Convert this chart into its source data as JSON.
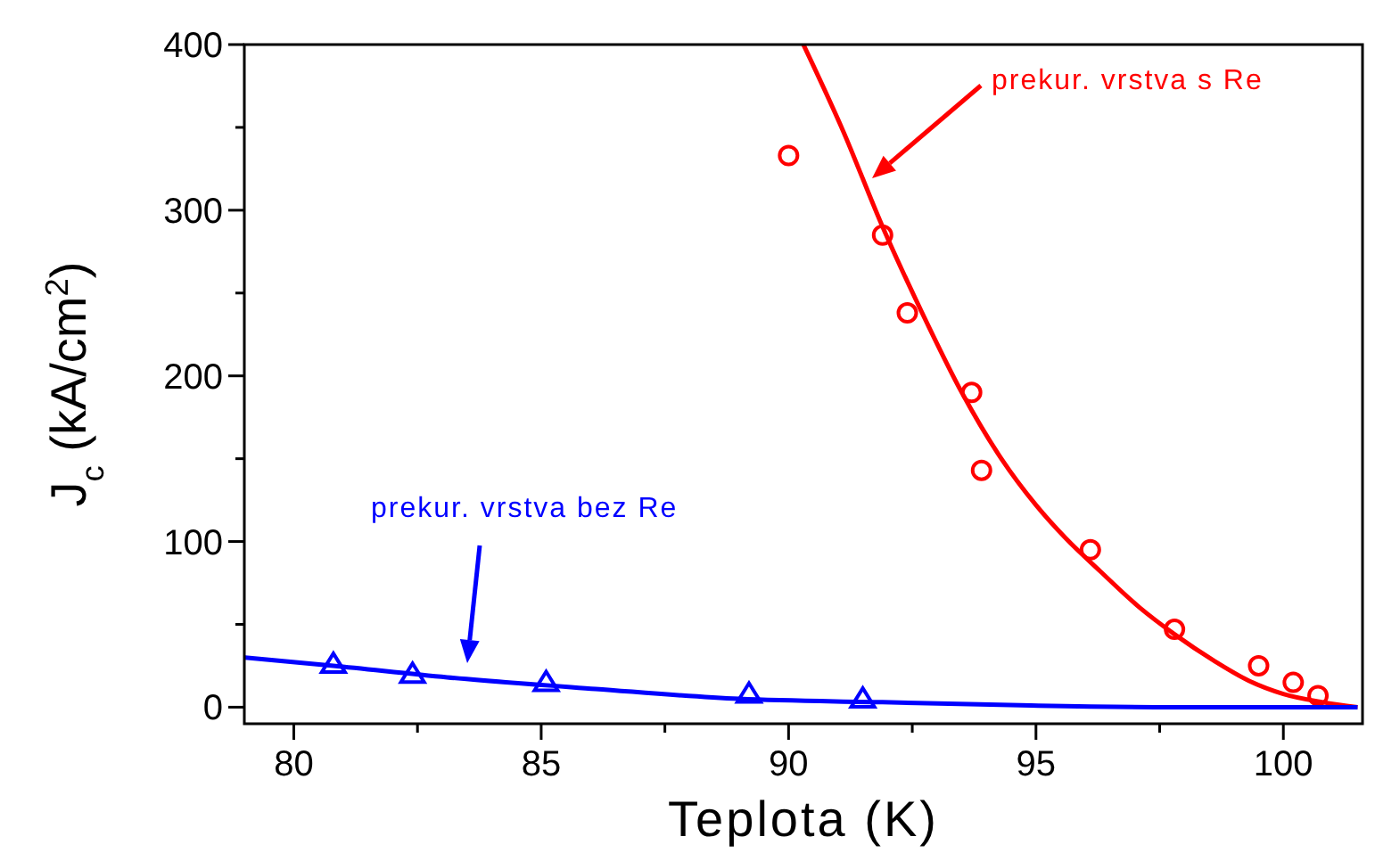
{
  "chart_data": {
    "type": "scatter",
    "xlabel": "Teplota (K)",
    "ylabel": "J$_{c}$ (kA/cm$^{2}$)",
    "xlim": [
      79,
      101.6
    ],
    "ylim": [
      -10,
      400
    ],
    "xticks": [
      80,
      {
        "value": 82.5,
        "label": null
      },
      85,
      {
        "value": 87.5,
        "label": null
      },
      90,
      {
        "value": 92.5,
        "label": null
      },
      95,
      {
        "value": 97.5,
        "label": null
      },
      100
    ],
    "yticks": [
      0,
      {
        "value": 50,
        "label": null
      },
      100,
      {
        "value": 150,
        "label": null
      },
      200,
      {
        "value": 250,
        "label": null
      },
      300,
      {
        "value": 350,
        "label": null
      },
      400
    ],
    "grid": false,
    "series": [
      {
        "type": "line",
        "color": "#ff0000",
        "marker": "none",
        "line_style": "solid",
        "x": [
          90.3,
          91.1,
          91.9,
          92.7,
          93.5,
          94.3,
          95.0,
          95.6,
          96.3,
          97.1,
          97.8,
          98.6,
          99.3,
          100.0,
          100.8,
          101.5
        ],
        "values": [
          400,
          348,
          290,
          238,
          190,
          150,
          122,
          102,
          82,
          60,
          44,
          28,
          16,
          8,
          3,
          0
        ]
      },
      {
        "color": "#ff0000",
        "marker": "circle",
        "x": [
          90.0,
          91.9,
          92.4,
          93.7,
          93.9,
          96.1,
          97.8,
          99.5,
          100.2,
          100.7
        ],
        "values": [
          333,
          285,
          238,
          190,
          143,
          95,
          47,
          25,
          15,
          7
        ]
      },
      {
        "type": "line",
        "color": "#0000ff",
        "marker": "none",
        "line_style": "solid",
        "x": [
          79.0,
          80.8,
          83.1,
          86.1,
          89.0,
          91.9,
          94.9,
          97.8,
          101.5
        ],
        "values": [
          30,
          25,
          18,
          11,
          5,
          3,
          1,
          0,
          0
        ]
      },
      {
        "color": "#0000ff",
        "marker": "triangle",
        "x": [
          80.8,
          82.4,
          85.1,
          89.2,
          91.5
        ],
        "values": [
          26,
          20,
          15,
          8,
          5
        ]
      }
    ],
    "annotations": [
      "prekur. vrstva s Re",
      "prekur. vrstva bez Re"
    ]
  }
}
